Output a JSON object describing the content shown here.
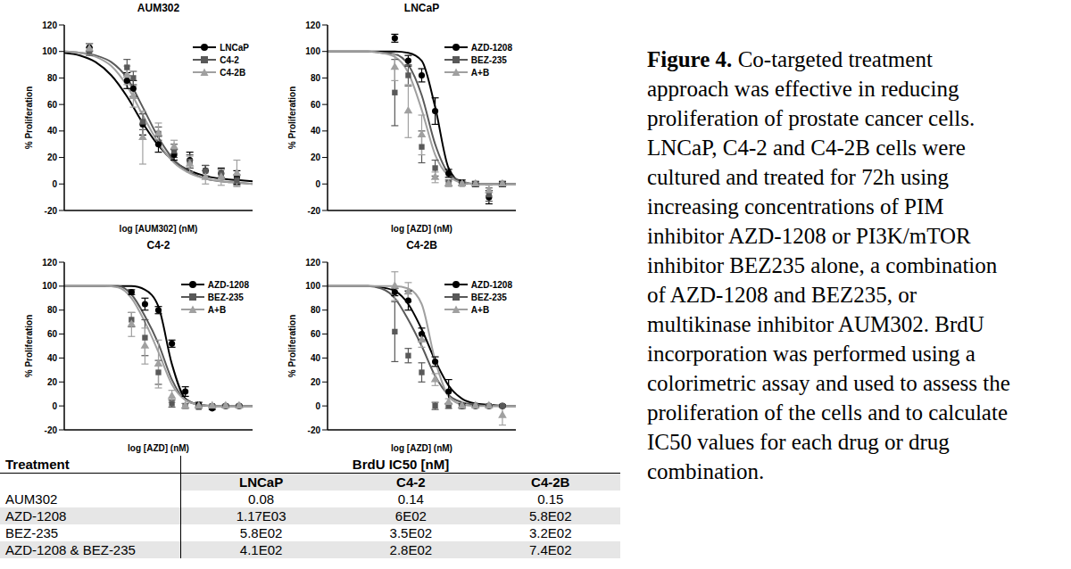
{
  "chart_data": [
    {
      "type": "scatter",
      "title": "AUM302",
      "x_label": "log [AUM302] (nM)",
      "y_label": "% Proliferation",
      "x": [
        -2.7,
        -1.5,
        -1.3,
        -1.0,
        -0.5,
        0,
        0.5,
        1.0,
        1.5,
        2.0
      ],
      "fit_x": [
        -3.5,
        -3,
        -2.5,
        -2,
        -1.5,
        -1,
        -0.5,
        0,
        0.5,
        1,
        1.5,
        2,
        2.5
      ],
      "xlim": [
        -3.5,
        2.5
      ],
      "xticks": [
        -3.5,
        -3,
        -2.5,
        -2,
        -1.5,
        -1,
        -0.5,
        0,
        0.5,
        1,
        1.5,
        2,
        2.5
      ],
      "ylim": [
        -20,
        120
      ],
      "yticks": [
        -20,
        0,
        20,
        40,
        60,
        80,
        100,
        120
      ],
      "tick_labels": "y",
      "legend": "top-right",
      "series": [
        {
          "name": "LNCaP",
          "color": "#000000",
          "marker": "circle",
          "values": [
            103,
            78,
            72,
            45,
            30,
            22,
            18,
            10,
            8,
            5
          ],
          "errors": [
            3,
            6,
            6,
            8,
            6,
            4,
            6,
            4,
            4,
            5
          ],
          "fit": [
            99,
            97,
            92,
            82,
            66,
            46,
            29,
            17,
            10,
            6,
            4,
            3,
            2
          ]
        },
        {
          "name": "C4-2",
          "color": "#595959",
          "marker": "square",
          "values": [
            100,
            88,
            80,
            47,
            38,
            25,
            17,
            10,
            8,
            3
          ],
          "errors": [
            3,
            6,
            5,
            6,
            5,
            5,
            5,
            4,
            3,
            4
          ],
          "fit": [
            100,
            99,
            97,
            92,
            80,
            58,
            35,
            18,
            9,
            4,
            2,
            1,
            0
          ]
        },
        {
          "name": "C4-2B",
          "color": "#a0a0a0",
          "marker": "triangle",
          "values": [
            102,
            82,
            66,
            35,
            38,
            28,
            15,
            5,
            5,
            8
          ],
          "errors": [
            4,
            7,
            8,
            20,
            8,
            5,
            6,
            5,
            6,
            10
          ],
          "fit": [
            100,
            99,
            96,
            89,
            74,
            52,
            31,
            16,
            8,
            4,
            2,
            1,
            0
          ]
        }
      ]
    },
    {
      "type": "scatter",
      "title": "LNCaP",
      "x_label": "log [AZD] (nM)",
      "y_label": "% Proliferation",
      "x": [
        1.5,
        2,
        2.5,
        3,
        3.5,
        4,
        4.5,
        5,
        5.5
      ],
      "fit_x": [
        -1,
        -0.5,
        0,
        0.5,
        1,
        1.5,
        2,
        2.5,
        3,
        3.5,
        4,
        4.5,
        5,
        5.5,
        6
      ],
      "xlim": [
        -1,
        6
      ],
      "xticks": [
        -1,
        -0.5,
        0,
        0.5,
        1,
        1.5,
        2,
        2.5,
        3,
        3.5,
        4,
        4.5,
        5,
        5.5,
        6
      ],
      "ylim": [
        -20,
        120
      ],
      "yticks": [
        -20,
        0,
        20,
        40,
        60,
        80,
        100,
        120
      ],
      "tick_labels": "y",
      "legend": "top-right",
      "series": [
        {
          "name": "AZD-1208",
          "color": "#000000",
          "marker": "circle",
          "values": [
            110,
            93,
            82,
            55,
            8,
            1,
            0,
            -10,
            0
          ],
          "errors": [
            3,
            4,
            5,
            10,
            3,
            2,
            2,
            5,
            2
          ],
          "fit": [
            100,
            100,
            100,
            100,
            100,
            100,
            99,
            93,
            58,
            12,
            1,
            0,
            0,
            0,
            0
          ]
        },
        {
          "name": "BEZ-235",
          "color": "#595959",
          "marker": "square",
          "values": [
            69,
            82,
            28,
            12,
            1,
            0,
            0,
            -8,
            0
          ],
          "errors": [
            25,
            8,
            12,
            6,
            2,
            1,
            1,
            5,
            1
          ],
          "fit": [
            100,
            100,
            100,
            100,
            99,
            98,
            90,
            67,
            30,
            8,
            2,
            0,
            0,
            0,
            0
          ]
        },
        {
          "name": "A+B",
          "color": "#a0a0a0",
          "marker": "triangle",
          "values": [
            88,
            55,
            37,
            5,
            0,
            0,
            0,
            -5,
            0
          ],
          "errors": [
            10,
            20,
            15,
            4,
            2,
            1,
            1,
            4,
            1
          ],
          "fit": [
            100,
            100,
            100,
            100,
            99,
            96,
            84,
            56,
            22,
            6,
            1,
            0,
            0,
            0,
            0
          ]
        }
      ]
    },
    {
      "type": "scatter",
      "title": "C4-2",
      "x_label": "log [AZD] (nM)",
      "y_label": "% Proliferation",
      "x": [
        1.5,
        2,
        2.5,
        3,
        3.5,
        4,
        4.5,
        5,
        5.5
      ],
      "fit_x": [
        -1,
        -0.5,
        0,
        0.5,
        1,
        1.5,
        2,
        2.5,
        3,
        3.5,
        4,
        4.5,
        5,
        5.5,
        6
      ],
      "xlim": [
        -1,
        6
      ],
      "xticks": [
        -1,
        -0.5,
        0,
        0.5,
        1,
        1.5,
        2,
        2.5,
        3,
        3.5,
        4,
        4.5,
        5,
        5.5,
        6
      ],
      "ylim": [
        -20,
        120
      ],
      "yticks": [
        -20,
        0,
        20,
        40,
        60,
        80,
        100,
        120
      ],
      "tick_labels": "y",
      "legend": "top-right",
      "series": [
        {
          "name": "AZD-1208",
          "color": "#000000",
          "marker": "circle",
          "values": [
            95,
            85,
            80,
            52,
            12,
            1,
            -2,
            0,
            0
          ],
          "errors": [
            2,
            5,
            3,
            3,
            4,
            2,
            1,
            1,
            1
          ],
          "fit": [
            100,
            100,
            100,
            100,
            100,
            100,
            97,
            83,
            35,
            6,
            1,
            0,
            0,
            0,
            0
          ]
        },
        {
          "name": "BEZ-235",
          "color": "#595959",
          "marker": "square",
          "values": [
            72,
            57,
            28,
            2,
            0,
            -1,
            0,
            0,
            0
          ],
          "errors": [
            6,
            15,
            10,
            3,
            2,
            1,
            1,
            1,
            1
          ],
          "fit": [
            100,
            100,
            100,
            100,
            100,
            93,
            75,
            52,
            22,
            5,
            1,
            0,
            0,
            0,
            0
          ]
        },
        {
          "name": "A+B",
          "color": "#a0a0a0",
          "marker": "triangle",
          "values": [
            68,
            50,
            35,
            8,
            0,
            0,
            0,
            0,
            0
          ],
          "errors": [
            10,
            15,
            20,
            5,
            2,
            1,
            1,
            1,
            1
          ],
          "fit": [
            100,
            100,
            100,
            100,
            99,
            90,
            70,
            45,
            18,
            5,
            1,
            0,
            0,
            0,
            0
          ]
        }
      ]
    },
    {
      "type": "scatter",
      "title": "C4-2B",
      "x_label": "log [AZD] (nM)",
      "y_label": "% Proliferation",
      "x": [
        1.5,
        2,
        2.5,
        3,
        3.5,
        4,
        4.5,
        5,
        5.5
      ],
      "fit_x": [
        -1,
        -0.5,
        0,
        0.5,
        1,
        1.5,
        2,
        2.5,
        3,
        3.5,
        4,
        4.5,
        5,
        5.5,
        6
      ],
      "xlim": [
        -1,
        6
      ],
      "xticks": [
        -1,
        -0.5,
        0,
        0.5,
        1,
        1.5,
        2,
        2.5,
        3,
        3.5,
        4,
        4.5,
        5,
        5.5,
        6
      ],
      "ylim": [
        -20,
        120
      ],
      "yticks": [
        -20,
        0,
        20,
        40,
        60,
        80,
        100,
        120
      ],
      "tick_labels": "y",
      "legend": "top-right",
      "series": [
        {
          "name": "AZD-1208",
          "color": "#000000",
          "marker": "circle",
          "values": [
            95,
            88,
            60,
            37,
            12,
            0,
            0,
            0,
            0
          ],
          "errors": [
            3,
            8,
            5,
            4,
            10,
            2,
            1,
            1,
            1
          ],
          "fit": [
            100,
            100,
            100,
            100,
            99,
            96,
            85,
            64,
            38,
            17,
            6,
            2,
            1,
            0,
            0
          ]
        },
        {
          "name": "BEZ-235",
          "color": "#595959",
          "marker": "square",
          "values": [
            62,
            42,
            28,
            0,
            0,
            0,
            0,
            0,
            0
          ],
          "errors": [
            25,
            6,
            8,
            3,
            2,
            1,
            1,
            1,
            1
          ],
          "fit": [
            100,
            100,
            100,
            100,
            98,
            90,
            72,
            50,
            25,
            9,
            3,
            1,
            0,
            0,
            0
          ]
        },
        {
          "name": "A+B",
          "color": "#a0a0a0",
          "marker": "triangle",
          "values": [
            100,
            95,
            55,
            22,
            3,
            0,
            0,
            0,
            -8
          ],
          "errors": [
            12,
            8,
            6,
            5,
            3,
            1,
            1,
            1,
            8
          ],
          "fit": [
            100,
            100,
            100,
            100,
            100,
            100,
            98,
            85,
            38,
            8,
            1,
            0,
            0,
            0,
            0
          ]
        }
      ]
    }
  ],
  "table": {
    "header": "Treatment",
    "group": "BrdU IC50 [nM]",
    "columns": [
      "LNCaP",
      "C4-2",
      "C4-2B"
    ],
    "rows": [
      [
        "AUM302",
        "0.08",
        "0.14",
        "0.15"
      ],
      [
        "AZD-1208",
        "1.17E03",
        "6E02",
        "5.8E02"
      ],
      [
        "BEZ-235",
        "5.8E02",
        "3.5E02",
        "3.2E02"
      ],
      [
        "AZD-1208 & BEZ-235",
        "4.1E02",
        "2.8E02",
        "7.4E02"
      ]
    ]
  },
  "caption": {
    "label": "Figure 4.",
    "lines": [
      "Co-targeted treatment",
      "approach was effective in reducing",
      "proliferation of prostate cancer cells.",
      "LNCaP, C4-2 and C4-2B cells were",
      "cultured and treated for 72h using",
      "increasing concentrations of PIM",
      "inhibitor AZD-1208 or PI3K/mTOR",
      "inhibitor BEZ235 alone, a combination",
      "of AZD-1208 and BEZ235, or",
      "multikinase inhibitor AUM302. BrdU",
      "incorporation was performed using a",
      "colorimetric assay and used to assess the",
      "proliferation of the cells and to calculate",
      "IC50 values for each drug or drug",
      "combination."
    ]
  }
}
